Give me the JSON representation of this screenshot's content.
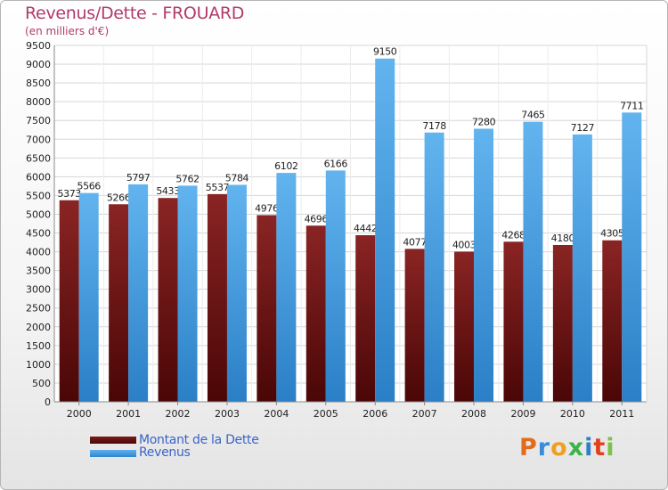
{
  "title": "Revenus/Dette - FROUARD",
  "subtitle": "(en milliers d'€)",
  "chart_data": {
    "type": "bar",
    "title": "Revenus/Dette - FROUARD",
    "subtitle": "(en milliers d'€)",
    "categories": [
      "2000",
      "2001",
      "2002",
      "2003",
      "2004",
      "2005",
      "2006",
      "2007",
      "2008",
      "2009",
      "2010",
      "2011"
    ],
    "series": [
      {
        "name": "Montant de la Dette",
        "color": "#6e1414",
        "values": [
          5373,
          5266,
          5433,
          5537,
          4976,
          4696,
          4442,
          4077,
          4003,
          4268,
          4180,
          4305
        ]
      },
      {
        "name": "Revenus",
        "color": "#4a9fe0",
        "values": [
          5566,
          5797,
          5762,
          5784,
          6102,
          6166,
          9150,
          7178,
          7280,
          7465,
          7127,
          7711
        ]
      }
    ],
    "ylim": [
      0,
      9500
    ],
    "ytick_step": 500,
    "grid": true,
    "legend_position": "bottom-left"
  },
  "legend": [
    {
      "label": "Montant de la Dette",
      "color": "#6e1414"
    },
    {
      "label": "Revenus",
      "color": "#4a9fe0"
    }
  ],
  "logo": {
    "text": "Proxiti",
    "letters": [
      "P",
      "r",
      "o",
      "x",
      "i",
      "t",
      "i"
    ]
  }
}
